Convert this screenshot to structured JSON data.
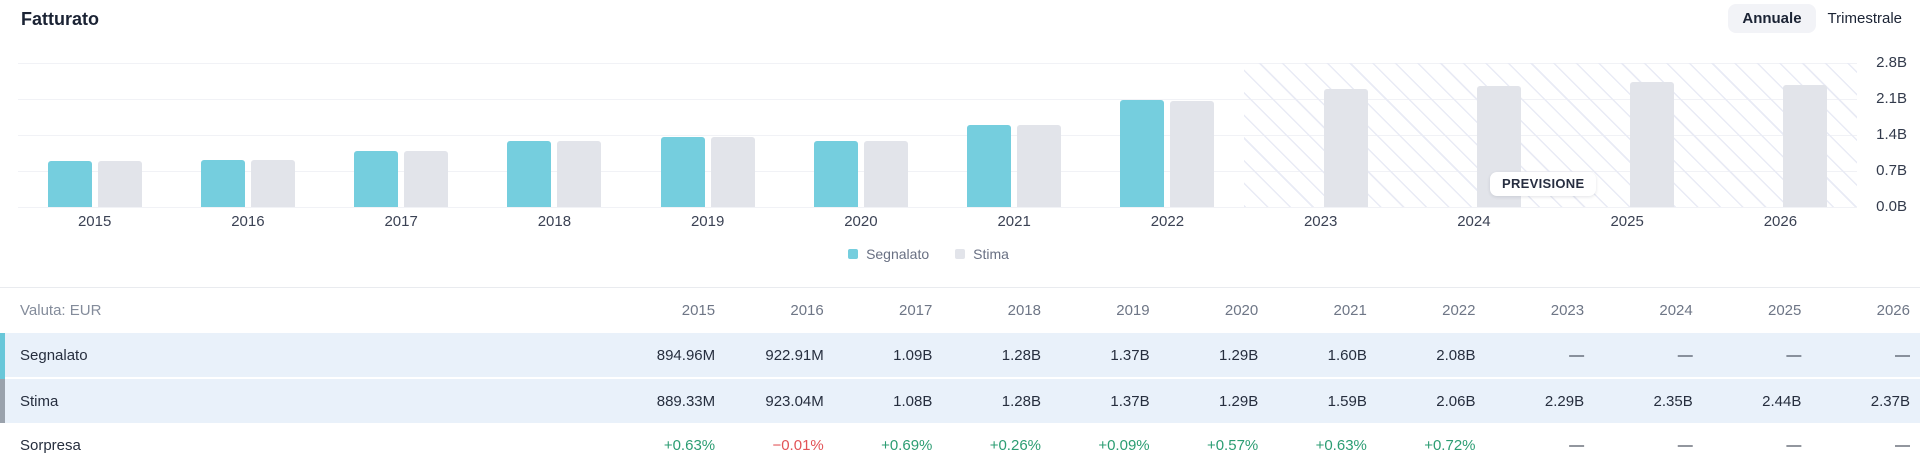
{
  "header": {
    "title": "Fatturato",
    "period_toggle": {
      "annual": "Annuale",
      "quarterly": "Trimestrale",
      "selected": "Annuale"
    }
  },
  "chart_data": {
    "type": "bar",
    "title": "Fatturato",
    "unit": "EUR billions",
    "x": [
      "2015",
      "2016",
      "2017",
      "2018",
      "2019",
      "2020",
      "2021",
      "2022",
      "2023",
      "2024",
      "2025",
      "2026"
    ],
    "series": [
      {
        "name": "Segnalato",
        "color": "#75cede",
        "values": [
          0.89496,
          0.92291,
          1.09,
          1.28,
          1.37,
          1.29,
          1.6,
          2.08,
          null,
          null,
          null,
          null
        ]
      },
      {
        "name": "Stima",
        "color": "#e2e4ea",
        "values": [
          0.88933,
          0.92304,
          1.08,
          1.28,
          1.37,
          1.29,
          1.59,
          2.06,
          2.29,
          2.35,
          2.44,
          2.37
        ]
      }
    ],
    "ylim": [
      0,
      2.8
    ],
    "yticks": [
      "2.8B",
      "2.1B",
      "1.4B",
      "0.7B",
      "0.0B"
    ],
    "grid": true,
    "legend": [
      "Segnalato",
      "Stima"
    ],
    "legend_position": "bottom-center",
    "forecast_start": "2023",
    "forecast_label": "PREVISIONE"
  },
  "table": {
    "currency_label": "Valuta: EUR",
    "years": [
      "2015",
      "2016",
      "2017",
      "2018",
      "2019",
      "2020",
      "2021",
      "2022",
      "2023",
      "2024",
      "2025",
      "2026"
    ],
    "rows": [
      {
        "label": "Segnalato",
        "accent": "#68c7d9",
        "highlight": true,
        "type": "value",
        "values": [
          "894.96M",
          "922.91M",
          "1.09B",
          "1.28B",
          "1.37B",
          "1.29B",
          "1.60B",
          "2.08B",
          "—",
          "—",
          "—",
          "—"
        ]
      },
      {
        "label": "Stima",
        "accent": "#9aa2ac",
        "highlight": true,
        "type": "value",
        "values": [
          "889.33M",
          "923.04M",
          "1.08B",
          "1.28B",
          "1.37B",
          "1.29B",
          "1.59B",
          "2.06B",
          "2.29B",
          "2.35B",
          "2.44B",
          "2.37B"
        ]
      },
      {
        "label": "Sorpresa",
        "accent": null,
        "highlight": false,
        "type": "percent",
        "values": [
          "+0.63%",
          "−0.01%",
          "+0.69%",
          "+0.26%",
          "+0.09%",
          "+0.57%",
          "+0.63%",
          "+0.72%",
          "—",
          "—",
          "—",
          "—"
        ]
      }
    ]
  },
  "colors": {
    "positive": "#2c9d73",
    "negative": "#e25357",
    "row_highlight": "#e9f1fa",
    "hatch_line": "#e9ebf5",
    "grid_line": "#f1f2f6"
  }
}
